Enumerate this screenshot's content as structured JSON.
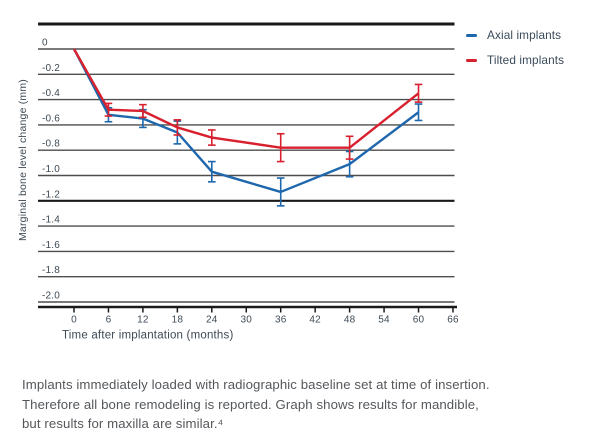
{
  "colors": {
    "axial": "#1e67ad",
    "tilted": "#d8202e",
    "gridline": "#4d4d4d",
    "strong_line": "#1a1a1a",
    "axis_text": "#3e4a55",
    "legend_text": "#3a4b5a",
    "caption_text": "#54575b"
  },
  "chart_data": {
    "type": "line",
    "title": "",
    "xlabel": "Time after implantation (months)",
    "ylabel": "Marginal bone level change (mm)",
    "xlim": [
      0,
      66
    ],
    "ylim": [
      -2.0,
      0
    ],
    "grid": true,
    "legend_position": "top-right",
    "x_ticks": [
      {
        "value": 0,
        "label": "0"
      },
      {
        "value": 6,
        "label": "6"
      },
      {
        "value": 12,
        "label": "12"
      },
      {
        "value": 18,
        "label": "18"
      },
      {
        "value": 24,
        "label": "24"
      },
      {
        "value": 30,
        "label": "30"
      },
      {
        "value": 36,
        "label": "36"
      },
      {
        "value": 42,
        "label": "42"
      },
      {
        "value": 48,
        "label": "48"
      },
      {
        "value": 54,
        "label": "54"
      },
      {
        "value": 60,
        "label": "60"
      },
      {
        "value": 66,
        "label": "66"
      }
    ],
    "y_ticks": [
      {
        "value": 0,
        "label": "0",
        "strong": false
      },
      {
        "value": -0.2,
        "label": "-0.2",
        "strong": false
      },
      {
        "value": -0.4,
        "label": "-0.4",
        "strong": false
      },
      {
        "value": -0.6,
        "label": "-0.6",
        "strong": false
      },
      {
        "value": -0.8,
        "label": "-0.8",
        "strong": false
      },
      {
        "value": -1.0,
        "label": "-1.0",
        "strong": false
      },
      {
        "value": -1.2,
        "label": "-1.2",
        "strong": true
      },
      {
        "value": -1.4,
        "label": "-1.4",
        "strong": false
      },
      {
        "value": -1.6,
        "label": "-1.6",
        "strong": false
      },
      {
        "value": -1.8,
        "label": "-1.8",
        "strong": false
      },
      {
        "value": -2.0,
        "label": "-2.0",
        "strong": false
      }
    ],
    "series": [
      {
        "name": "Axial implants",
        "color": "#1e67ad",
        "x": [
          0,
          6,
          12,
          18,
          24,
          36,
          48,
          60
        ],
        "values": [
          0,
          -0.52,
          -0.55,
          -0.66,
          -0.97,
          -1.13,
          -0.91,
          -0.5
        ],
        "errors": [
          0,
          0.055,
          0.07,
          0.09,
          0.08,
          0.11,
          0.1,
          0.065
        ]
      },
      {
        "name": "Tilted implants",
        "color": "#d8202e",
        "x": [
          0,
          6,
          12,
          18,
          24,
          36,
          48,
          60
        ],
        "values": [
          0,
          -0.48,
          -0.49,
          -0.62,
          -0.7,
          -0.78,
          -0.78,
          -0.35
        ],
        "errors": [
          0,
          0.05,
          0.05,
          0.06,
          0.06,
          0.11,
          0.09,
          0.07
        ]
      }
    ]
  },
  "caption": {
    "lines": [
      "Implants immediately loaded with radiographic baseline set at time of insertion.",
      "Therefore all bone remodeling is reported. Graph shows results for mandible,",
      "but results for maxilla are similar.⁴"
    ]
  }
}
